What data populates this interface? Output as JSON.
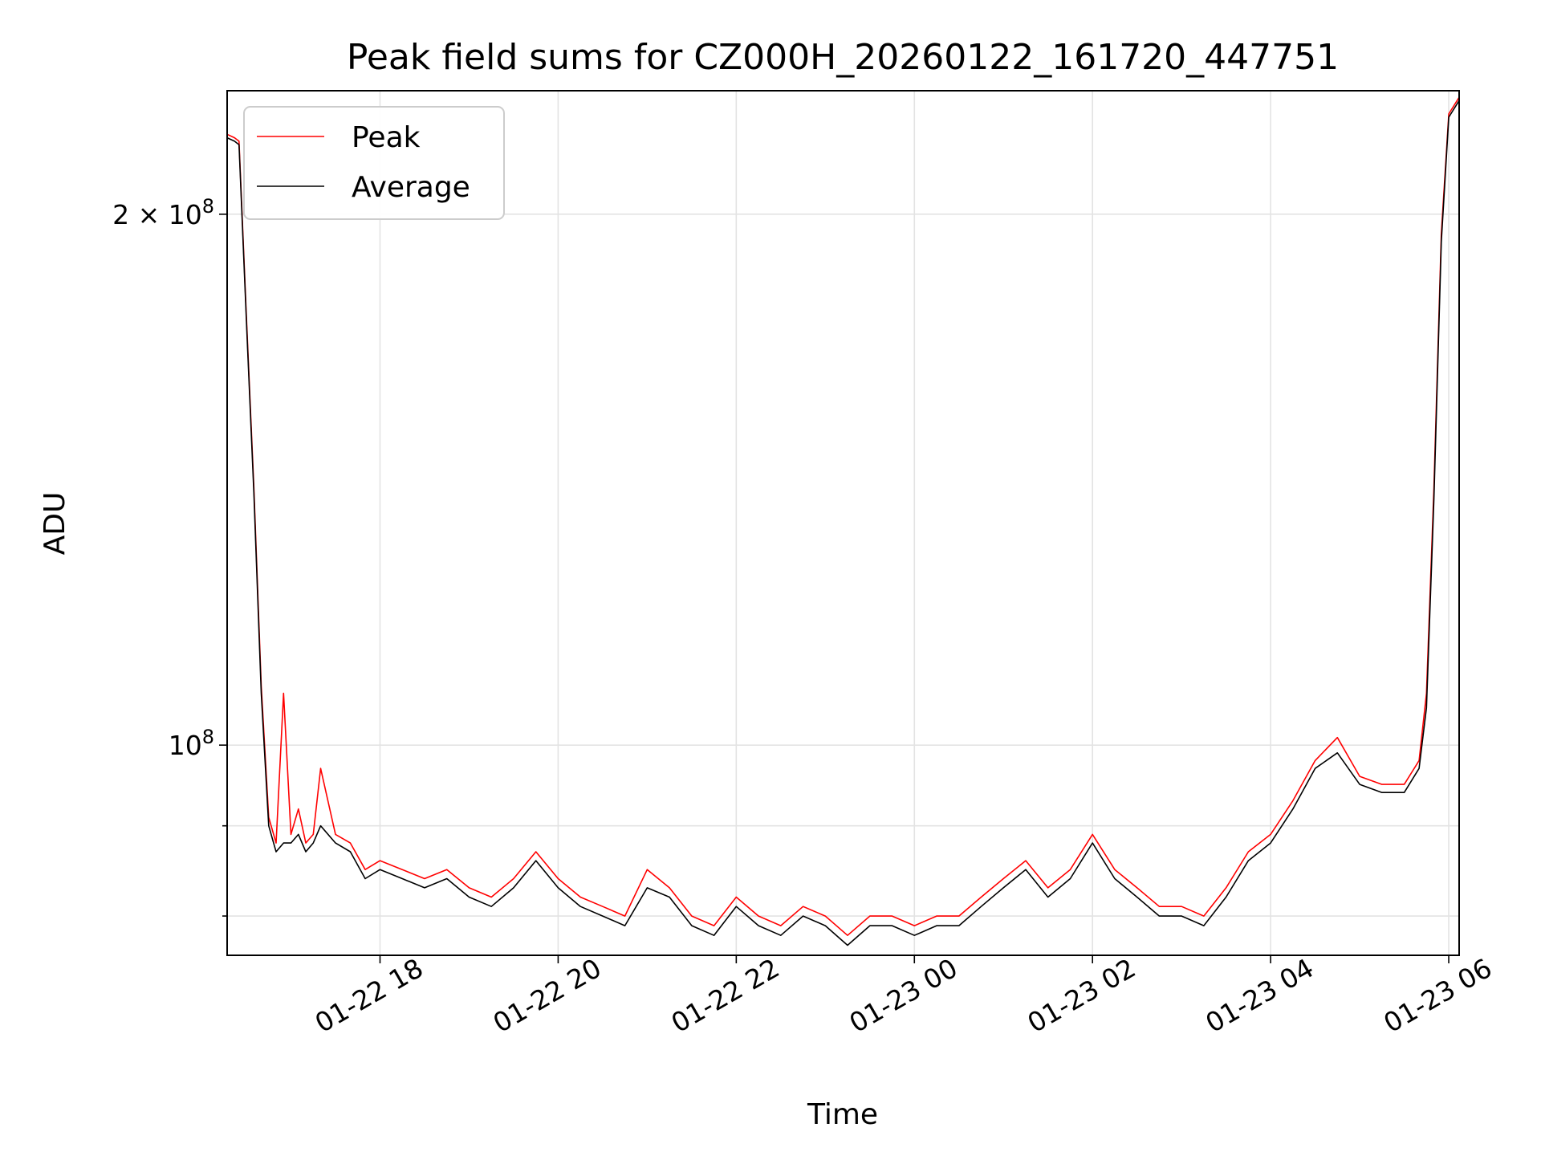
{
  "chart_data": {
    "type": "line",
    "title": "Peak field sums for CZ000H_20260122_161720_447751",
    "xlabel": "Time",
    "ylabel": "ADU",
    "y_scale": "log",
    "ylim": [
      76000000,
      235000000
    ],
    "xlim": [
      "2026-01-22 16:17",
      "2026-01-23 06:07"
    ],
    "grid": true,
    "legend_position": "top-left",
    "x_ticks": [
      {
        "t": "2026-01-22 18:00",
        "label": "01-22 18"
      },
      {
        "t": "2026-01-22 20:00",
        "label": "01-22 20"
      },
      {
        "t": "2026-01-22 22:00",
        "label": "01-22 22"
      },
      {
        "t": "2026-01-23 00:00",
        "label": "01-23 00"
      },
      {
        "t": "2026-01-23 02:00",
        "label": "01-23 02"
      },
      {
        "t": "2026-01-23 04:00",
        "label": "01-23 04"
      },
      {
        "t": "2026-01-23 06:00",
        "label": "01-23 06"
      }
    ],
    "y_major_ticks": [
      {
        "value": 100000000,
        "base": "10",
        "exp": "8"
      },
      {
        "value": 200000000,
        "base": "2 × 10",
        "exp": "8"
      }
    ],
    "y_minor_ticks": [
      80000000,
      90000000
    ],
    "x": [
      "2026-01-22 16:17",
      "2026-01-22 16:22",
      "2026-01-22 16:25",
      "2026-01-22 16:30",
      "2026-01-22 16:35",
      "2026-01-22 16:40",
      "2026-01-22 16:45",
      "2026-01-22 16:50",
      "2026-01-22 16:55",
      "2026-01-22 17:00",
      "2026-01-22 17:05",
      "2026-01-22 17:10",
      "2026-01-22 17:15",
      "2026-01-22 17:20",
      "2026-01-22 17:30",
      "2026-01-22 17:40",
      "2026-01-22 17:50",
      "2026-01-22 18:00",
      "2026-01-22 18:15",
      "2026-01-22 18:30",
      "2026-01-22 18:45",
      "2026-01-22 19:00",
      "2026-01-22 19:15",
      "2026-01-22 19:30",
      "2026-01-22 19:45",
      "2026-01-22 20:00",
      "2026-01-22 20:15",
      "2026-01-22 20:30",
      "2026-01-22 20:45",
      "2026-01-22 21:00",
      "2026-01-22 21:15",
      "2026-01-22 21:30",
      "2026-01-22 21:45",
      "2026-01-22 22:00",
      "2026-01-22 22:15",
      "2026-01-22 22:30",
      "2026-01-22 22:45",
      "2026-01-22 23:00",
      "2026-01-22 23:15",
      "2026-01-22 23:30",
      "2026-01-22 23:45",
      "2026-01-23 00:00",
      "2026-01-23 00:15",
      "2026-01-23 00:30",
      "2026-01-23 00:45",
      "2026-01-23 01:00",
      "2026-01-23 01:15",
      "2026-01-23 01:30",
      "2026-01-23 01:45",
      "2026-01-23 02:00",
      "2026-01-23 02:15",
      "2026-01-23 02:30",
      "2026-01-23 02:45",
      "2026-01-23 03:00",
      "2026-01-23 03:15",
      "2026-01-23 03:30",
      "2026-01-23 03:45",
      "2026-01-23 04:00",
      "2026-01-23 04:15",
      "2026-01-23 04:30",
      "2026-01-23 04:45",
      "2026-01-23 05:00",
      "2026-01-23 05:15",
      "2026-01-23 05:30",
      "2026-01-23 05:40",
      "2026-01-23 05:45",
      "2026-01-23 05:50",
      "2026-01-23 05:55",
      "2026-01-23 06:00",
      "2026-01-23 06:07"
    ],
    "series": [
      {
        "name": "Peak",
        "color": "#ff0000",
        "values": [
          222000000,
          221000000,
          220000000,
          175000000,
          140000000,
          108000000,
          91000000,
          88000000,
          107000000,
          89000000,
          92000000,
          88000000,
          89000000,
          97000000,
          89000000,
          88000000,
          85000000,
          86000000,
          85000000,
          84000000,
          85000000,
          83000000,
          82000000,
          84000000,
          87000000,
          84000000,
          82000000,
          81000000,
          80000000,
          85000000,
          83000000,
          80000000,
          79000000,
          82000000,
          80000000,
          79000000,
          81000000,
          80000000,
          78000000,
          80000000,
          80000000,
          79000000,
          80000000,
          80000000,
          82000000,
          84000000,
          86000000,
          83000000,
          85000000,
          89000000,
          85000000,
          83000000,
          81000000,
          81000000,
          80000000,
          83000000,
          87000000,
          89000000,
          93000000,
          98000000,
          101000000,
          96000000,
          95000000,
          95000000,
          98000000,
          107000000,
          140000000,
          195000000,
          228000000,
          233000000
        ]
      },
      {
        "name": "Average",
        "color": "#000000",
        "values": [
          221000000,
          220000000,
          219000000,
          174000000,
          139000000,
          107000000,
          90000000,
          87000000,
          88000000,
          88000000,
          89000000,
          87000000,
          88000000,
          90000000,
          88000000,
          87000000,
          84000000,
          85000000,
          84000000,
          83000000,
          84000000,
          82000000,
          81000000,
          83000000,
          86000000,
          83000000,
          81000000,
          80000000,
          79000000,
          83000000,
          82000000,
          79000000,
          78000000,
          81000000,
          79000000,
          78000000,
          80000000,
          79000000,
          77000000,
          79000000,
          79000000,
          78000000,
          79000000,
          79000000,
          81000000,
          83000000,
          85000000,
          82000000,
          84000000,
          88000000,
          84000000,
          82000000,
          80000000,
          80000000,
          79000000,
          82000000,
          86000000,
          88000000,
          92000000,
          97000000,
          99000000,
          95000000,
          94000000,
          94000000,
          97000000,
          105000000,
          138000000,
          193000000,
          227000000,
          232000000
        ]
      }
    ]
  }
}
